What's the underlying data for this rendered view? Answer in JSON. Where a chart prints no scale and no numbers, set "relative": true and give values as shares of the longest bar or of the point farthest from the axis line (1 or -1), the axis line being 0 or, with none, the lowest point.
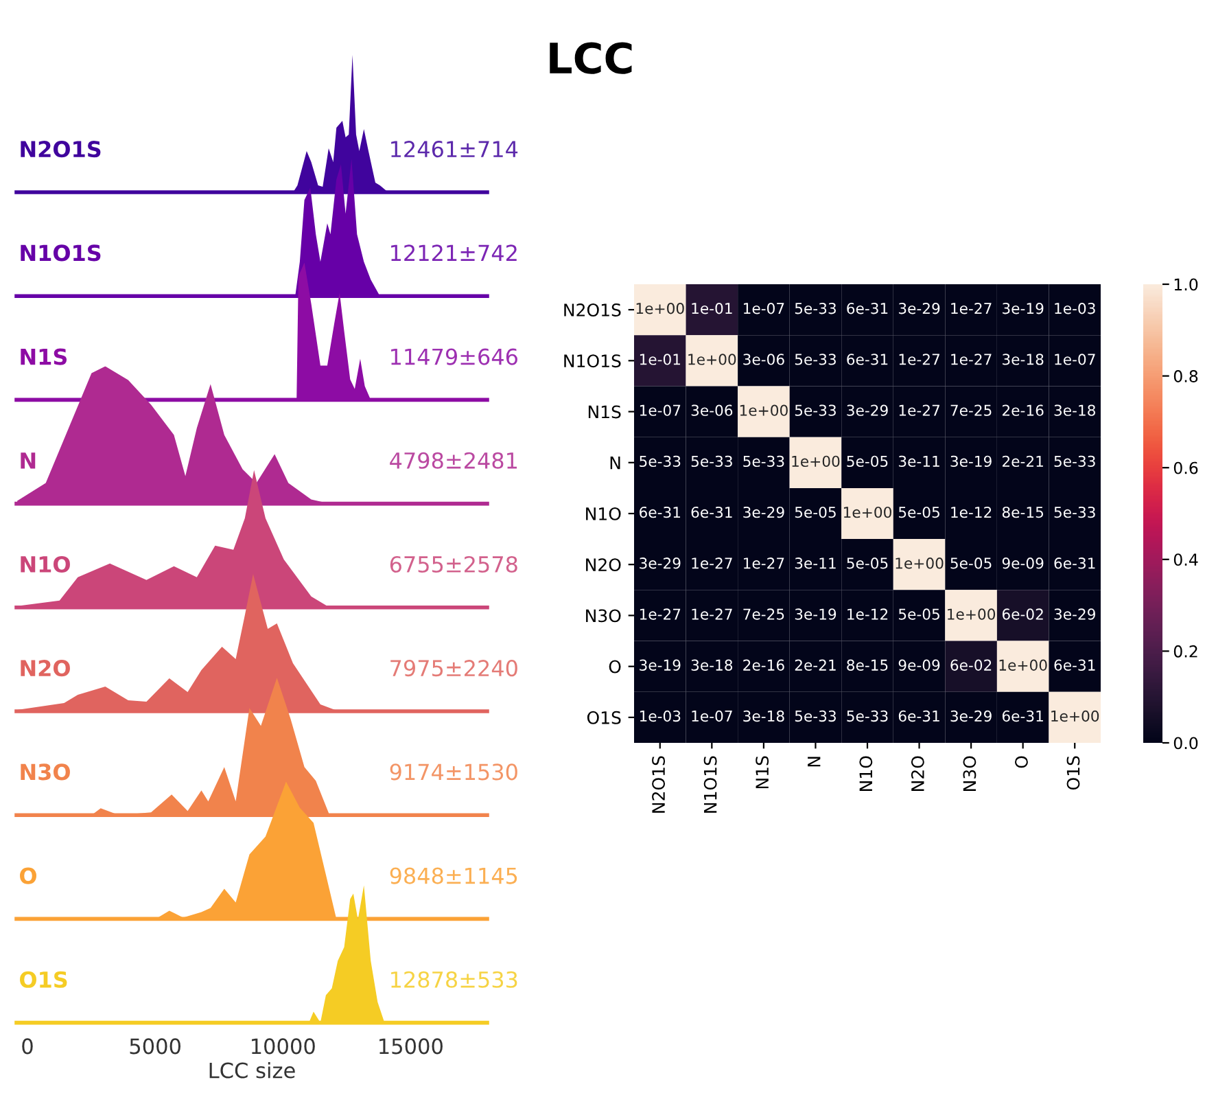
{
  "chart_data": [
    {
      "type": "area",
      "relative": true,
      "xlim": [
        -430,
        18000
      ],
      "xticks": [
        0,
        5000,
        10000,
        15000
      ],
      "tick_labels": false,
      "annotations": [
        "12461±714"
      ],
      "series": [
        {
          "name": "N2O1S",
          "color": "#40049d",
          "x": [
            10400,
            10570,
            10931,
            11110,
            11379,
            11559,
            11792,
            11971,
            12096,
            12329,
            12455,
            12580,
            12724,
            12867,
            12992,
            13172,
            13351,
            13620,
            13799,
            14121
          ],
          "values": [
            0,
            0.05,
            0.3,
            0.22,
            0.05,
            0.04,
            0.32,
            0.22,
            0.47,
            0.52,
            0.4,
            0.42,
            1.0,
            0.42,
            0.3,
            0.46,
            0.3,
            0.07,
            0.05,
            0
          ]
        }
      ]
    },
    {
      "type": "area",
      "relative": true,
      "xlim": [
        -430,
        18000
      ],
      "xticks": [
        0,
        5000,
        10000,
        15000
      ],
      "tick_labels": false,
      "annotations": [
        "12121±742"
      ],
      "series": [
        {
          "name": "N1O1S",
          "color": "#6600a7",
          "x": [
            10483,
            10663,
            10843,
            11075,
            11290,
            11469,
            11738,
            11863,
            12096,
            12275,
            12455,
            12688,
            12903,
            13172,
            13440,
            13799
          ],
          "values": [
            0,
            0.25,
            0.7,
            0.79,
            0.45,
            0.25,
            0.53,
            0.45,
            0.85,
            0.96,
            0.6,
            1.0,
            0.45,
            0.25,
            0.12,
            0
          ]
        }
      ]
    },
    {
      "type": "area",
      "relative": true,
      "xlim": [
        -430,
        18000
      ],
      "xticks": [
        0,
        5000,
        10000,
        15000
      ],
      "tick_labels": false,
      "annotations": [
        "11479±646"
      ],
      "series": [
        {
          "name": "N1S",
          "color": "#8d0ca4",
          "x": [
            10537,
            10609,
            10843,
            11110,
            11469,
            11738,
            12006,
            12221,
            12400,
            12634,
            12813,
            13028,
            13208,
            13440
          ],
          "values": [
            0,
            0.9,
            1.0,
            0.7,
            0.25,
            0.25,
            0.55,
            0.78,
            0.5,
            0.15,
            0.08,
            0.3,
            0.1,
            0
          ]
        }
      ]
    },
    {
      "type": "area",
      "relative": true,
      "xlim": [
        -430,
        18000
      ],
      "xticks": [
        0,
        5000,
        10000,
        15000
      ],
      "tick_labels": false,
      "annotations": [
        "4798±2481"
      ],
      "series": [
        {
          "name": "N",
          "color": "#af2a91",
          "x": [
            -400,
            717,
            1613,
            2509,
            3047,
            3943,
            4839,
            5735,
            6183,
            6631,
            7168,
            7706,
            8423,
            8963,
            9677,
            10215,
            11110,
            11827
          ],
          "values": [
            0.02,
            0.15,
            0.55,
            0.95,
            1.0,
            0.9,
            0.72,
            0.5,
            0.2,
            0.55,
            0.87,
            0.5,
            0.25,
            0.15,
            0.36,
            0.15,
            0.03,
            0
          ]
        }
      ]
    },
    {
      "type": "area",
      "relative": true,
      "xlim": [
        -430,
        18000
      ],
      "xticks": [
        0,
        5000,
        10000,
        15000
      ],
      "tick_labels": false,
      "annotations": [
        "6755±2578"
      ],
      "series": [
        {
          "name": "N1O",
          "color": "#cb4679",
          "x": [
            -400,
            1255,
            1971,
            3226,
            4659,
            5735,
            6631,
            7347,
            8064,
            8512,
            8871,
            9319,
            10036,
            11110,
            11827
          ],
          "values": [
            0.01,
            0.05,
            0.22,
            0.32,
            0.2,
            0.3,
            0.22,
            0.45,
            0.42,
            0.65,
            1.0,
            0.65,
            0.35,
            0.08,
            0
          ]
        }
      ]
    },
    {
      "type": "area",
      "relative": true,
      "xlim": [
        -430,
        18000
      ],
      "xticks": [
        0,
        5000,
        10000,
        15000
      ],
      "tick_labels": false,
      "annotations": [
        "7975±2240"
      ],
      "series": [
        {
          "name": "N2O",
          "color": "#e0645f",
          "x": [
            -400,
            1434,
            1971,
            3047,
            3943,
            4659,
            5555,
            6272,
            6810,
            7616,
            8154,
            8512,
            8835,
            9408,
            9767,
            10394,
            11469,
            12186
          ],
          "values": [
            0.01,
            0.06,
            0.12,
            0.18,
            0.08,
            0.07,
            0.24,
            0.14,
            0.3,
            0.47,
            0.38,
            0.7,
            1.0,
            0.6,
            0.64,
            0.35,
            0.05,
            0
          ]
        }
      ]
    },
    {
      "type": "area",
      "relative": true,
      "xlim": [
        -430,
        18000
      ],
      "xticks": [
        0,
        5000,
        10000,
        15000
      ],
      "tick_labels": false,
      "annotations": [
        "9174±1530"
      ],
      "series": [
        {
          "name": "N3O",
          "color": "#f1834c",
          "x": [
            2509,
            2867,
            3584,
            4839,
            5645,
            6272,
            6810,
            7078,
            7706,
            8154,
            8691,
            9139,
            9767,
            10304,
            10843,
            11290,
            11827
          ],
          "values": [
            0,
            0.05,
            0,
            0.02,
            0.15,
            0.03,
            0.18,
            0.1,
            0.35,
            0.1,
            0.78,
            0.65,
            1.0,
            0.7,
            0.35,
            0.25,
            0
          ]
        }
      ]
    },
    {
      "type": "area",
      "relative": true,
      "xlim": [
        -430,
        18000
      ],
      "xticks": [
        0,
        5000,
        10000,
        15000
      ],
      "tick_labels": false,
      "annotations": [
        "9848±1145"
      ],
      "series": [
        {
          "name": "O",
          "color": "#fba236",
          "x": [
            5017,
            5555,
            6093,
            6810,
            7168,
            7706,
            8154,
            8691,
            9319,
            10125,
            10663,
            11200,
            11648,
            12096
          ],
          "values": [
            0,
            0.06,
            0.01,
            0.05,
            0.08,
            0.22,
            0.12,
            0.47,
            0.6,
            1.0,
            0.81,
            0.7,
            0.35,
            0
          ]
        }
      ]
    },
    {
      "type": "area",
      "relative": true,
      "xlim": [
        -430,
        18000
      ],
      "xticks": [
        0,
        5000,
        10000,
        15000
      ],
      "tick_labels": "x",
      "xlabel": "LCC size",
      "annotations": [
        "12878±533"
      ],
      "series": [
        {
          "name": "O1S",
          "color": "#f5cc24",
          "x": [
            11021,
            11200,
            11469,
            11684,
            11917,
            12150,
            12400,
            12634,
            12759,
            12938,
            13172,
            13440,
            13709,
            13978
          ],
          "values": [
            0,
            0.08,
            0,
            0.2,
            0.25,
            0.45,
            0.55,
            0.9,
            0.94,
            0.75,
            1.0,
            0.45,
            0.15,
            0
          ]
        }
      ]
    },
    {
      "type": "heatmap",
      "title": "LCC",
      "data_labels": true,
      "clim": [
        0.0,
        1.0
      ],
      "cticks": [
        {
          "value": 0.0,
          "label": "0.0"
        },
        0.2,
        0.4,
        0.6,
        0.8,
        {
          "value": 1.0,
          "label": "1.0"
        }
      ],
      "categories": [
        "N2O1S",
        "N1O1S",
        "N1S",
        "N",
        "N1O",
        "N2O",
        "N3O",
        "O",
        "O1S"
      ],
      "y_categories": [
        "N2O1S",
        "N1O1S",
        "N1S",
        "N",
        "N1O",
        "N2O",
        "N3O",
        "O",
        "O1S"
      ],
      "cells": [
        [
          1,
          0.1,
          1e-07,
          5e-33,
          6e-31,
          3e-29,
          1e-27,
          3e-19,
          0.001
        ],
        [
          0.1,
          1,
          3e-06,
          5e-33,
          6e-31,
          1e-27,
          1e-27,
          3e-18,
          1e-07
        ],
        [
          1e-07,
          3e-06,
          1,
          5e-33,
          3e-29,
          1e-27,
          7e-25,
          2e-16,
          3e-18
        ],
        [
          5e-33,
          5e-33,
          5e-33,
          1,
          5e-05,
          3e-11,
          3e-19,
          2e-21,
          5e-33
        ],
        [
          6e-31,
          6e-31,
          3e-29,
          5e-05,
          1,
          5e-05,
          1e-12,
          8e-15,
          5e-33
        ],
        [
          3e-29,
          1e-27,
          1e-27,
          3e-11,
          5e-05,
          1,
          5e-05,
          9e-09,
          6e-31
        ],
        [
          1e-27,
          1e-27,
          7e-25,
          3e-19,
          1e-12,
          5e-05,
          1,
          0.06,
          3e-29
        ],
        [
          3e-19,
          3e-18,
          2e-16,
          2e-21,
          8e-15,
          9e-09,
          0.06,
          1,
          6e-31
        ],
        [
          0.001,
          1e-07,
          3e-18,
          5e-33,
          5e-33,
          6e-31,
          3e-29,
          6e-31,
          1
        ]
      ],
      "cell_labels": [
        [
          "1e+00",
          "1e-01",
          "1e-07",
          "5e-33",
          "6e-31",
          "3e-29",
          "1e-27",
          "3e-19",
          "1e-03"
        ],
        [
          "1e-01",
          "1e+00",
          "3e-06",
          "5e-33",
          "6e-31",
          "1e-27",
          "1e-27",
          "3e-18",
          "1e-07"
        ],
        [
          "1e-07",
          "3e-06",
          "1e+00",
          "5e-33",
          "3e-29",
          "1e-27",
          "7e-25",
          "2e-16",
          "3e-18"
        ],
        [
          "5e-33",
          "5e-33",
          "5e-33",
          "1e+00",
          "5e-05",
          "3e-11",
          "3e-19",
          "2e-21",
          "5e-33"
        ],
        [
          "6e-31",
          "6e-31",
          "3e-29",
          "5e-05",
          "1e+00",
          "5e-05",
          "1e-12",
          "8e-15",
          "5e-33"
        ],
        [
          "3e-29",
          "1e-27",
          "1e-27",
          "3e-11",
          "5e-05",
          "1e+00",
          "5e-05",
          "9e-09",
          "6e-31"
        ],
        [
          "1e-27",
          "1e-27",
          "7e-25",
          "3e-19",
          "1e-12",
          "5e-05",
          "1e+00",
          "6e-02",
          "3e-29"
        ],
        [
          "3e-19",
          "3e-18",
          "2e-16",
          "2e-21",
          "8e-15",
          "9e-09",
          "6e-02",
          "1e+00",
          "6e-31"
        ],
        [
          "1e-03",
          "1e-07",
          "3e-18",
          "5e-33",
          "5e-33",
          "6e-31",
          "3e-29",
          "6e-31",
          "1e+00"
        ]
      ]
    }
  ]
}
